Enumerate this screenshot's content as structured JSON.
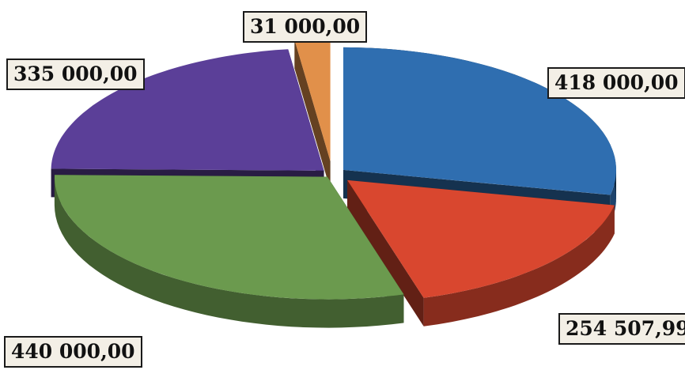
{
  "chart_data": {
    "type": "pie",
    "style": "3d-exploded",
    "slices": [
      {
        "label": "418 000,00",
        "value": 418000.0,
        "color": "#2f6eb0"
      },
      {
        "label": "254 507,99",
        "value": 254507.99,
        "color": "#d9472f"
      },
      {
        "label": "440 000,00",
        "value": 440000.0,
        "color": "#6b9a4e"
      },
      {
        "label": "335 000,00",
        "value": 335000.0,
        "color": "#5b3f98"
      },
      {
        "label": "31 000,00",
        "value": 31000.0,
        "color": "#e1904a"
      }
    ],
    "legend": "none",
    "title": ""
  }
}
